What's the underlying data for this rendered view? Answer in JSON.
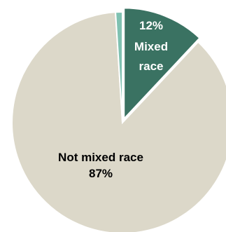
{
  "chart_data": {
    "type": "pie",
    "slices": [
      {
        "label": "Mixed race",
        "value": 12,
        "display_value": "12%",
        "color": "#3a7262",
        "exploded": true
      },
      {
        "label": "Not mixed race",
        "value": 87,
        "display_value": "87%",
        "color": "#dcd8c9",
        "exploded": false
      },
      {
        "label": "",
        "value": 1,
        "display_value": "",
        "color": "#7fc1b1",
        "exploded": false
      }
    ],
    "data_labels": {
      "mixed": {
        "value": "12%",
        "line1": "Mixed",
        "line2": "race",
        "color": "#ffffff"
      },
      "not_mixed": {
        "name": "Not mixed race",
        "value": "87%",
        "color": "#000000"
      }
    }
  }
}
